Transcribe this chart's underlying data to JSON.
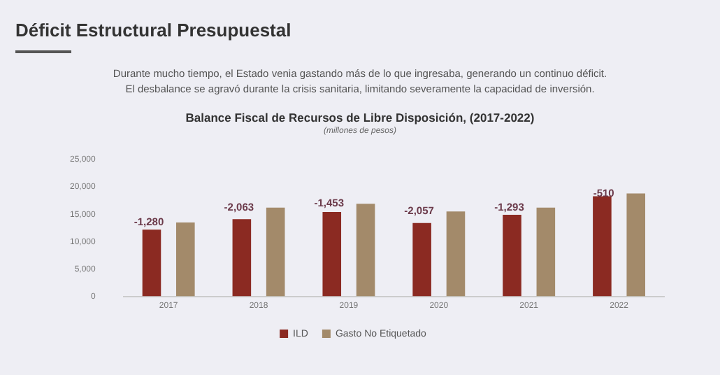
{
  "chart_data": {
    "type": "bar",
    "title": "Balance Fiscal de Recursos de Libre Disposición, (2017-2022)",
    "subtitle": "(millones de pesos)",
    "annotations": [
      "Déficit Estructural Presupuestal",
      "Durante mucho tiempo, el Estado venia gastando más de lo que ingresaba, generando un continuo déficit.",
      "El desbalance se agravó durante la crisis sanitaria, limitando severamente la capacidad de inversión.",
      "-1,280",
      "-2,063",
      "-1,453",
      "-2,057",
      "-1,293",
      "-510"
    ],
    "categories": [
      "2017",
      "2018",
      "2019",
      "2020",
      "2021",
      "2022"
    ],
    "series": [
      {
        "name": "ILD",
        "color": "#8b2a22",
        "values": [
          12200,
          14100,
          15400,
          13400,
          14900,
          18300
        ]
      },
      {
        "name": "Gasto No Etiquetado",
        "color": "#a38a6a",
        "values": [
          13500,
          16200,
          16900,
          15500,
          16200,
          18800
        ]
      }
    ],
    "ylim": [
      0,
      25000
    ],
    "yticks": [
      {
        "value": 0,
        "label": "0"
      },
      {
        "value": 5000,
        "label": "5,000"
      },
      {
        "value": 10000,
        "label": "10,000"
      },
      {
        "value": 15000,
        "label": "15,000"
      },
      {
        "value": 20000,
        "label": "20,000"
      },
      {
        "value": 25000,
        "label": "25,000"
      }
    ],
    "grid": false,
    "legend": "bottom"
  }
}
